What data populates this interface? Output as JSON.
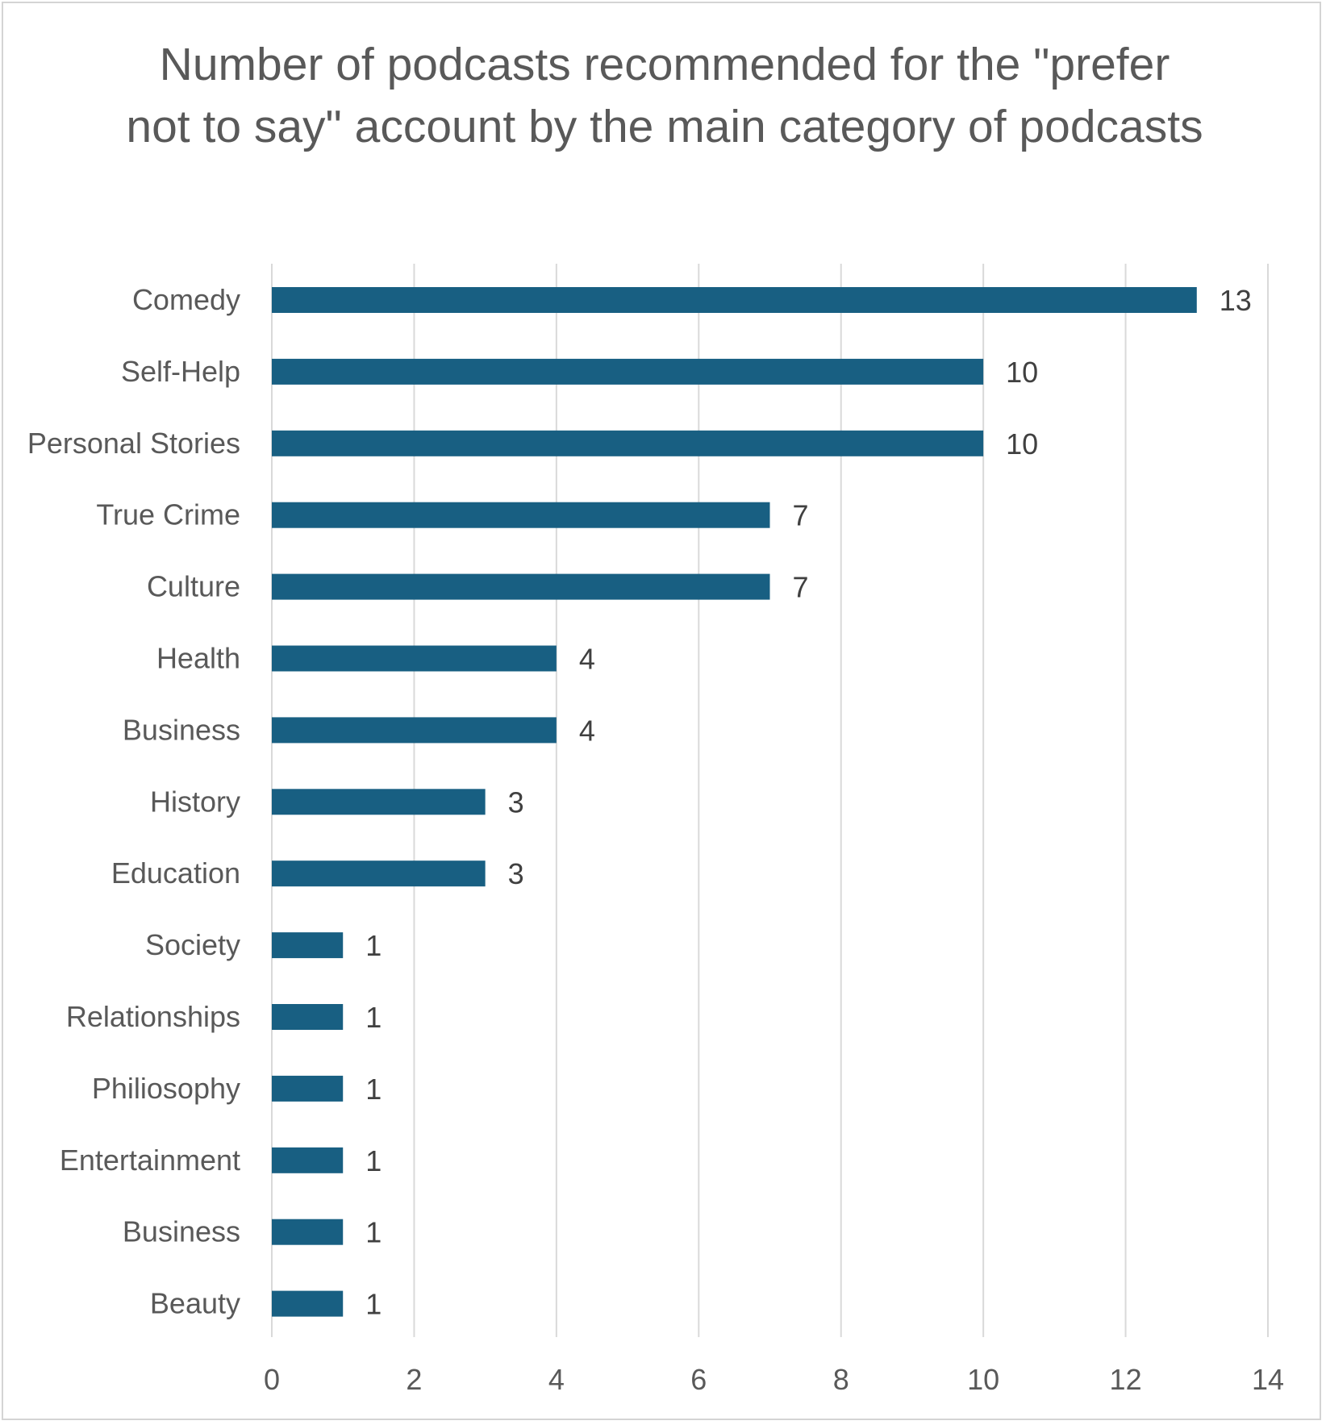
{
  "chart_data": {
    "type": "bar",
    "orientation": "horizontal",
    "title": "Number of podcasts recommended for the \"prefer not to say\" account by the main category of podcasts",
    "categories": [
      "Comedy",
      "Self-Help",
      "Personal Stories",
      "True Crime",
      "Culture",
      "Health",
      "Business",
      "History",
      "Education",
      "Society",
      "Relationships",
      "Philiosophy",
      "Entertainment",
      "Business",
      "Beauty"
    ],
    "values": [
      13,
      10,
      10,
      7,
      7,
      4,
      4,
      3,
      3,
      1,
      1,
      1,
      1,
      1,
      1
    ],
    "xlim": [
      0,
      14
    ],
    "xticks": [
      0,
      2,
      4,
      6,
      8,
      10,
      12,
      14
    ],
    "grid": true,
    "legend": "none",
    "data_labels": true,
    "bar_color": "#185f82",
    "grid_color": "#d9d9d9"
  }
}
